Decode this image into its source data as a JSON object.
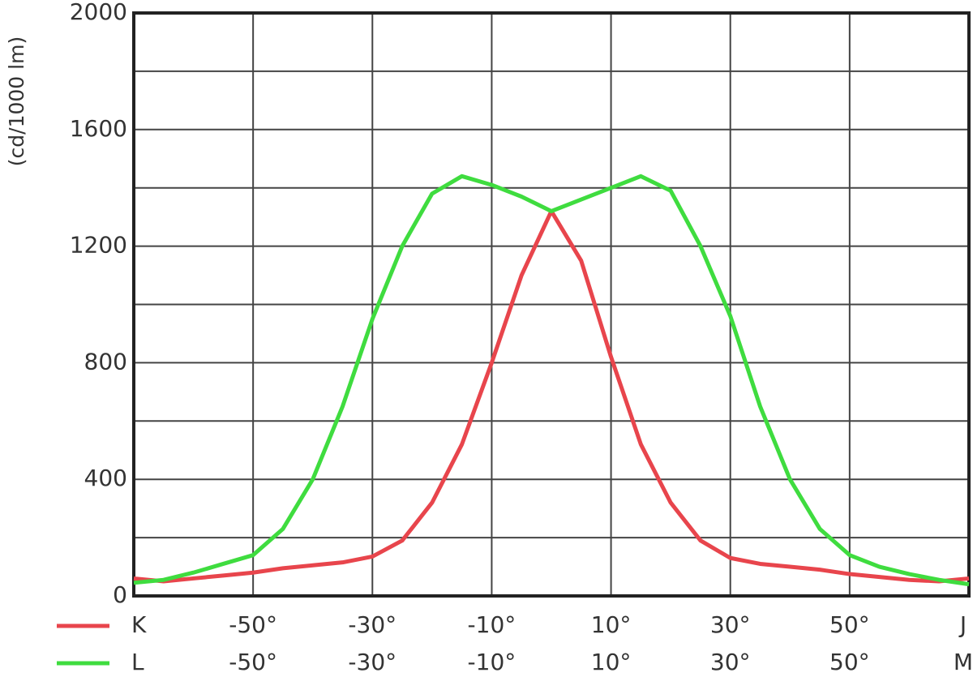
{
  "chart_data": {
    "type": "line",
    "y_label": "(cd/1000 lm)",
    "x": [
      -70,
      -65,
      -60,
      -55,
      -50,
      -45,
      -40,
      -35,
      -30,
      -25,
      -20,
      -15,
      -10,
      -5,
      0,
      5,
      10,
      15,
      20,
      25,
      30,
      35,
      40,
      45,
      50,
      55,
      60,
      65,
      70
    ],
    "series": [
      {
        "name": "K",
        "color": "#e8454c",
        "values": [
          60,
          50,
          60,
          70,
          80,
          95,
          105,
          115,
          135,
          190,
          320,
          520,
          800,
          1100,
          1320,
          1150,
          820,
          520,
          320,
          190,
          130,
          110,
          100,
          90,
          75,
          65,
          55,
          50,
          60
        ],
        "xtick_labels": [
          {
            "value": -50,
            "label": "-50°"
          },
          {
            "value": -30,
            "label": "-30°"
          },
          {
            "value": -10,
            "label": "-10°"
          },
          {
            "value": 10,
            "label": "10°"
          },
          {
            "value": 30,
            "label": "30°"
          },
          {
            "value": 50,
            "label": "50°"
          }
        ],
        "end_label": "J"
      },
      {
        "name": "L",
        "color": "#3fdc3f",
        "values": [
          45,
          55,
          80,
          110,
          140,
          230,
          400,
          650,
          950,
          1200,
          1380,
          1440,
          1410,
          1370,
          1320,
          1360,
          1400,
          1440,
          1390,
          1200,
          960,
          650,
          400,
          230,
          140,
          100,
          75,
          55,
          40
        ],
        "xtick_labels": [
          {
            "value": -50,
            "label": "-50°"
          },
          {
            "value": -30,
            "label": "-30°"
          },
          {
            "value": -10,
            "label": "-10°"
          },
          {
            "value": 10,
            "label": "10°"
          },
          {
            "value": 30,
            "label": "30°"
          },
          {
            "value": 50,
            "label": "50°"
          }
        ],
        "end_label": "M"
      }
    ],
    "xlim": [
      -70,
      70
    ],
    "xgrid": [
      -50,
      -30,
      -10,
      10,
      30,
      50
    ],
    "ylim": [
      0,
      2000
    ],
    "yticks": [
      0,
      400,
      800,
      1200,
      1600,
      2000
    ],
    "ygrid": [
      200,
      400,
      600,
      800,
      1000,
      1200,
      1400,
      1600,
      1800
    ],
    "grid": true
  }
}
